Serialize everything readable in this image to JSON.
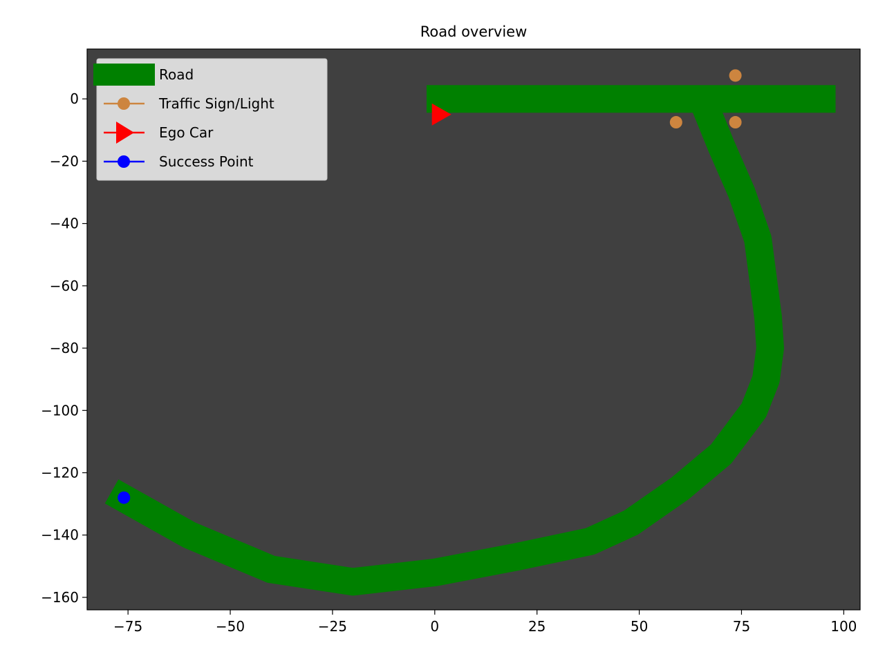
{
  "chart_data": {
    "type": "line",
    "title": "Road overview",
    "xlabel": "",
    "ylabel": "",
    "xlim": [
      -85,
      104
    ],
    "ylim": [
      -164,
      16
    ],
    "xticks": [
      -75,
      -50,
      -25,
      0,
      25,
      50,
      75,
      100
    ],
    "yticks": [
      0,
      -20,
      -40,
      -60,
      -80,
      -100,
      -120,
      -140,
      -160
    ],
    "xtick_labels": [
      "−75",
      "−50",
      "−25",
      "0",
      "25",
      "50",
      "75",
      "100"
    ],
    "ytick_labels": [
      "0",
      "−20",
      "−40",
      "−60",
      "−80",
      "−100",
      "−120",
      "−140",
      "−160"
    ],
    "grid": false,
    "background": "#404040",
    "legend_position": "top-left",
    "series": [
      {
        "name": "Road",
        "kind": "road",
        "color": "#008000",
        "segments": [
          [
            [
              -2,
              0
            ],
            [
              98,
              0
            ]
          ],
          [
            [
              66,
              -2
            ],
            [
              70,
              -15
            ],
            [
              75,
              -30
            ],
            [
              79,
              -45
            ],
            [
              80.5,
              -60
            ],
            [
              81.5,
              -70
            ],
            [
              82,
              -80
            ],
            [
              81,
              -90
            ],
            [
              78,
              -100
            ],
            [
              70,
              -114
            ],
            [
              60,
              -125
            ],
            [
              48,
              -136
            ],
            [
              38,
              -142
            ],
            [
              20,
              -147
            ],
            [
              0,
              -152
            ],
            [
              -20,
              -155
            ],
            [
              -40,
              -151
            ],
            [
              -60,
              -140
            ],
            [
              -79,
              -126
            ]
          ]
        ]
      },
      {
        "name": "Traffic Sign/Light",
        "kind": "marker-circle",
        "color": "#cd853f",
        "points": [
          [
            73.5,
            7.5
          ],
          [
            59,
            -7.5
          ],
          [
            73.5,
            -7.5
          ]
        ]
      },
      {
        "name": "Ego Car",
        "kind": "marker-triangle",
        "color": "#ff0000",
        "points": [
          [
            1.5,
            -5
          ]
        ]
      },
      {
        "name": "Success Point",
        "kind": "marker-circle",
        "color": "#0000ff",
        "points": [
          [
            -76,
            -128
          ]
        ]
      }
    ]
  }
}
